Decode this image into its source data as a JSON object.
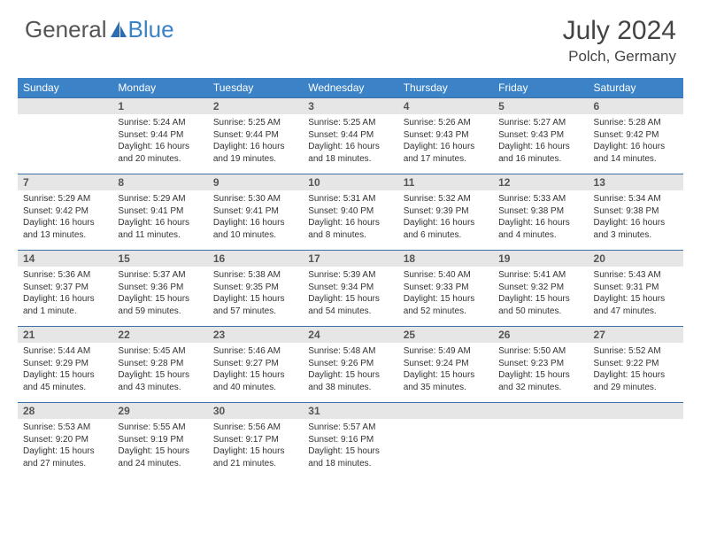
{
  "brand": {
    "text1": "General",
    "text2": "Blue",
    "icon_color": "#2f6db3"
  },
  "title": "July 2024",
  "location": "Polch, Germany",
  "header_bg": "#3b82c7",
  "border_color": "#3b6fa5",
  "daynum_bg": "#e6e6e6",
  "weekdays": [
    "Sunday",
    "Monday",
    "Tuesday",
    "Wednesday",
    "Thursday",
    "Friday",
    "Saturday"
  ],
  "weeks": [
    [
      null,
      {
        "n": "1",
        "sunrise": "5:24 AM",
        "sunset": "9:44 PM",
        "daylight": "16 hours and 20 minutes."
      },
      {
        "n": "2",
        "sunrise": "5:25 AM",
        "sunset": "9:44 PM",
        "daylight": "16 hours and 19 minutes."
      },
      {
        "n": "3",
        "sunrise": "5:25 AM",
        "sunset": "9:44 PM",
        "daylight": "16 hours and 18 minutes."
      },
      {
        "n": "4",
        "sunrise": "5:26 AM",
        "sunset": "9:43 PM",
        "daylight": "16 hours and 17 minutes."
      },
      {
        "n": "5",
        "sunrise": "5:27 AM",
        "sunset": "9:43 PM",
        "daylight": "16 hours and 16 minutes."
      },
      {
        "n": "6",
        "sunrise": "5:28 AM",
        "sunset": "9:42 PM",
        "daylight": "16 hours and 14 minutes."
      }
    ],
    [
      {
        "n": "7",
        "sunrise": "5:29 AM",
        "sunset": "9:42 PM",
        "daylight": "16 hours and 13 minutes."
      },
      {
        "n": "8",
        "sunrise": "5:29 AM",
        "sunset": "9:41 PM",
        "daylight": "16 hours and 11 minutes."
      },
      {
        "n": "9",
        "sunrise": "5:30 AM",
        "sunset": "9:41 PM",
        "daylight": "16 hours and 10 minutes."
      },
      {
        "n": "10",
        "sunrise": "5:31 AM",
        "sunset": "9:40 PM",
        "daylight": "16 hours and 8 minutes."
      },
      {
        "n": "11",
        "sunrise": "5:32 AM",
        "sunset": "9:39 PM",
        "daylight": "16 hours and 6 minutes."
      },
      {
        "n": "12",
        "sunrise": "5:33 AM",
        "sunset": "9:38 PM",
        "daylight": "16 hours and 4 minutes."
      },
      {
        "n": "13",
        "sunrise": "5:34 AM",
        "sunset": "9:38 PM",
        "daylight": "16 hours and 3 minutes."
      }
    ],
    [
      {
        "n": "14",
        "sunrise": "5:36 AM",
        "sunset": "9:37 PM",
        "daylight": "16 hours and 1 minute."
      },
      {
        "n": "15",
        "sunrise": "5:37 AM",
        "sunset": "9:36 PM",
        "daylight": "15 hours and 59 minutes."
      },
      {
        "n": "16",
        "sunrise": "5:38 AM",
        "sunset": "9:35 PM",
        "daylight": "15 hours and 57 minutes."
      },
      {
        "n": "17",
        "sunrise": "5:39 AM",
        "sunset": "9:34 PM",
        "daylight": "15 hours and 54 minutes."
      },
      {
        "n": "18",
        "sunrise": "5:40 AM",
        "sunset": "9:33 PM",
        "daylight": "15 hours and 52 minutes."
      },
      {
        "n": "19",
        "sunrise": "5:41 AM",
        "sunset": "9:32 PM",
        "daylight": "15 hours and 50 minutes."
      },
      {
        "n": "20",
        "sunrise": "5:43 AM",
        "sunset": "9:31 PM",
        "daylight": "15 hours and 47 minutes."
      }
    ],
    [
      {
        "n": "21",
        "sunrise": "5:44 AM",
        "sunset": "9:29 PM",
        "daylight": "15 hours and 45 minutes."
      },
      {
        "n": "22",
        "sunrise": "5:45 AM",
        "sunset": "9:28 PM",
        "daylight": "15 hours and 43 minutes."
      },
      {
        "n": "23",
        "sunrise": "5:46 AM",
        "sunset": "9:27 PM",
        "daylight": "15 hours and 40 minutes."
      },
      {
        "n": "24",
        "sunrise": "5:48 AM",
        "sunset": "9:26 PM",
        "daylight": "15 hours and 38 minutes."
      },
      {
        "n": "25",
        "sunrise": "5:49 AM",
        "sunset": "9:24 PM",
        "daylight": "15 hours and 35 minutes."
      },
      {
        "n": "26",
        "sunrise": "5:50 AM",
        "sunset": "9:23 PM",
        "daylight": "15 hours and 32 minutes."
      },
      {
        "n": "27",
        "sunrise": "5:52 AM",
        "sunset": "9:22 PM",
        "daylight": "15 hours and 29 minutes."
      }
    ],
    [
      {
        "n": "28",
        "sunrise": "5:53 AM",
        "sunset": "9:20 PM",
        "daylight": "15 hours and 27 minutes."
      },
      {
        "n": "29",
        "sunrise": "5:55 AM",
        "sunset": "9:19 PM",
        "daylight": "15 hours and 24 minutes."
      },
      {
        "n": "30",
        "sunrise": "5:56 AM",
        "sunset": "9:17 PM",
        "daylight": "15 hours and 21 minutes."
      },
      {
        "n": "31",
        "sunrise": "5:57 AM",
        "sunset": "9:16 PM",
        "daylight": "15 hours and 18 minutes."
      },
      null,
      null,
      null
    ]
  ],
  "labels": {
    "sunrise": "Sunrise: ",
    "sunset": "Sunset: ",
    "daylight": "Daylight: "
  }
}
